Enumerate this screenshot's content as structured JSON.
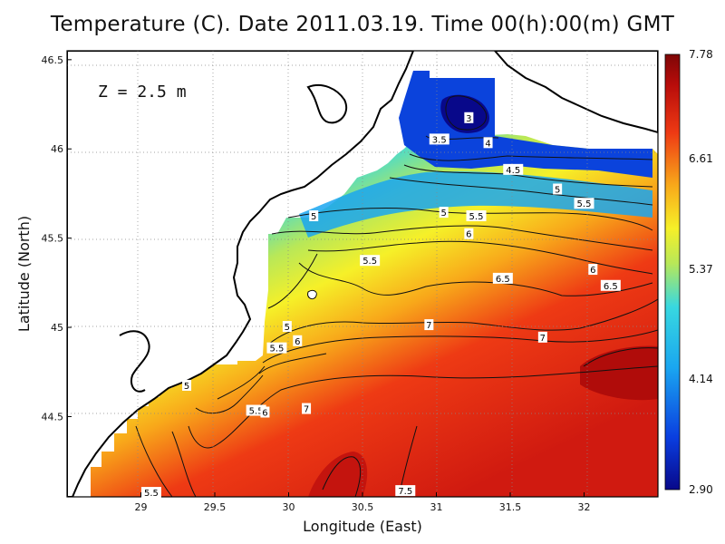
{
  "title": "Temperature (C). Date 2011.03.19. Time 00(h):00(m) GMT",
  "depth_label": "Z = 2.5 m",
  "chart_data": {
    "type": "heatmap",
    "xlabel": "Longitude (East)",
    "ylabel": "Latitude (North)",
    "xlim": [
      28.5,
      32.5
    ],
    "ylim": [
      44.05,
      46.55
    ],
    "x_ticks": [
      "29",
      "29.5",
      "30",
      "30.5",
      "31",
      "31.5",
      "32"
    ],
    "y_ticks": [
      "44.5",
      "45",
      "45.5",
      "46",
      "46.5"
    ],
    "grid": true,
    "colorbar": {
      "min": 2.9,
      "max": 7.78,
      "tick_labels": [
        "2.90",
        "4.14",
        "5.37",
        "6.61",
        "7.78"
      ],
      "colors": [
        "#08088a",
        "#0a3ee0",
        "#1aa6f0",
        "#38d8e0",
        "#b8e858",
        "#f6f028",
        "#f8a81a",
        "#ee3a14",
        "#b80c0a",
        "#7e0606"
      ]
    },
    "contour_labels": [
      {
        "text": "3",
        "lon": 31.22,
        "lat": 46.17
      },
      {
        "text": "3.5",
        "lon": 31.02,
        "lat": 46.05
      },
      {
        "text": "4",
        "lon": 31.35,
        "lat": 46.03
      },
      {
        "text": "4.5",
        "lon": 31.52,
        "lat": 45.88
      },
      {
        "text": "5",
        "lon": 31.82,
        "lat": 45.77
      },
      {
        "text": "5.5",
        "lon": 32.0,
        "lat": 45.69
      },
      {
        "text": "5",
        "lon": 30.17,
        "lat": 45.62
      },
      {
        "text": "5",
        "lon": 31.05,
        "lat": 45.64
      },
      {
        "text": "5.5",
        "lon": 31.27,
        "lat": 45.62
      },
      {
        "text": "6",
        "lon": 31.22,
        "lat": 45.52
      },
      {
        "text": "5.5",
        "lon": 30.55,
        "lat": 45.37
      },
      {
        "text": "6.5",
        "lon": 31.45,
        "lat": 45.27
      },
      {
        "text": "6",
        "lon": 32.06,
        "lat": 45.32
      },
      {
        "text": "6.5",
        "lon": 32.18,
        "lat": 45.23
      },
      {
        "text": "5",
        "lon": 29.99,
        "lat": 45.0
      },
      {
        "text": "6",
        "lon": 30.06,
        "lat": 44.92
      },
      {
        "text": "5.5",
        "lon": 29.92,
        "lat": 44.88
      },
      {
        "text": "7",
        "lon": 30.95,
        "lat": 45.01
      },
      {
        "text": "7",
        "lon": 31.72,
        "lat": 44.94
      },
      {
        "text": "5",
        "lon": 29.31,
        "lat": 44.67
      },
      {
        "text": "5.5",
        "lon": 29.78,
        "lat": 44.53
      },
      {
        "text": "6",
        "lon": 29.84,
        "lat": 44.52
      },
      {
        "text": "7",
        "lon": 30.12,
        "lat": 44.54
      },
      {
        "text": "5.5",
        "lon": 29.07,
        "lat": 44.07
      },
      {
        "text": "7.5",
        "lon": 30.79,
        "lat": 44.08
      }
    ]
  }
}
